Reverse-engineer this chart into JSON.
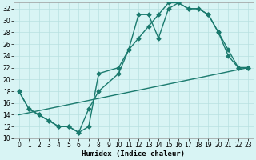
{
  "line1_x": [
    0,
    1,
    2,
    3,
    4,
    5,
    6,
    7,
    8,
    10,
    11,
    12,
    13,
    14,
    15,
    16,
    17,
    18,
    19,
    20,
    21,
    22,
    23
  ],
  "line1_y": [
    18,
    15,
    14,
    13,
    12,
    12,
    11,
    12,
    21,
    22,
    25,
    31,
    31,
    27,
    32,
    33,
    32,
    32,
    31,
    28,
    25,
    22,
    22
  ],
  "line2_x": [
    0,
    1,
    2,
    3,
    4,
    5,
    6,
    7,
    8,
    10,
    11,
    12,
    13,
    14,
    15,
    16,
    17,
    18,
    19,
    20,
    21,
    22,
    23
  ],
  "line2_y": [
    18,
    15,
    14,
    13,
    12,
    12,
    11,
    15,
    18,
    21,
    25,
    27,
    29,
    31,
    33,
    33,
    32,
    32,
    31,
    28,
    24,
    22,
    22
  ],
  "line3_x": [
    0,
    23
  ],
  "line3_y": [
    14,
    22
  ],
  "line_color": "#1a7a6e",
  "bg_color": "#d8f4f4",
  "grid_color": "#b8e0e0",
  "xlabel": "Humidex (Indice chaleur)",
  "xlim_min": -0.5,
  "xlim_max": 23.5,
  "ylim_min": 10,
  "ylim_max": 33,
  "yticks": [
    10,
    12,
    14,
    16,
    18,
    20,
    22,
    24,
    26,
    28,
    30,
    32
  ],
  "xticks": [
    0,
    1,
    2,
    3,
    4,
    5,
    6,
    7,
    8,
    9,
    10,
    11,
    12,
    13,
    14,
    15,
    16,
    17,
    18,
    19,
    20,
    21,
    22,
    23
  ],
  "marker": "D",
  "markersize": 2.5,
  "linewidth": 1.0,
  "xlabel_fontsize": 6.5,
  "tick_fontsize": 5.5,
  "figwidth": 3.2,
  "figheight": 2.0,
  "dpi": 100
}
